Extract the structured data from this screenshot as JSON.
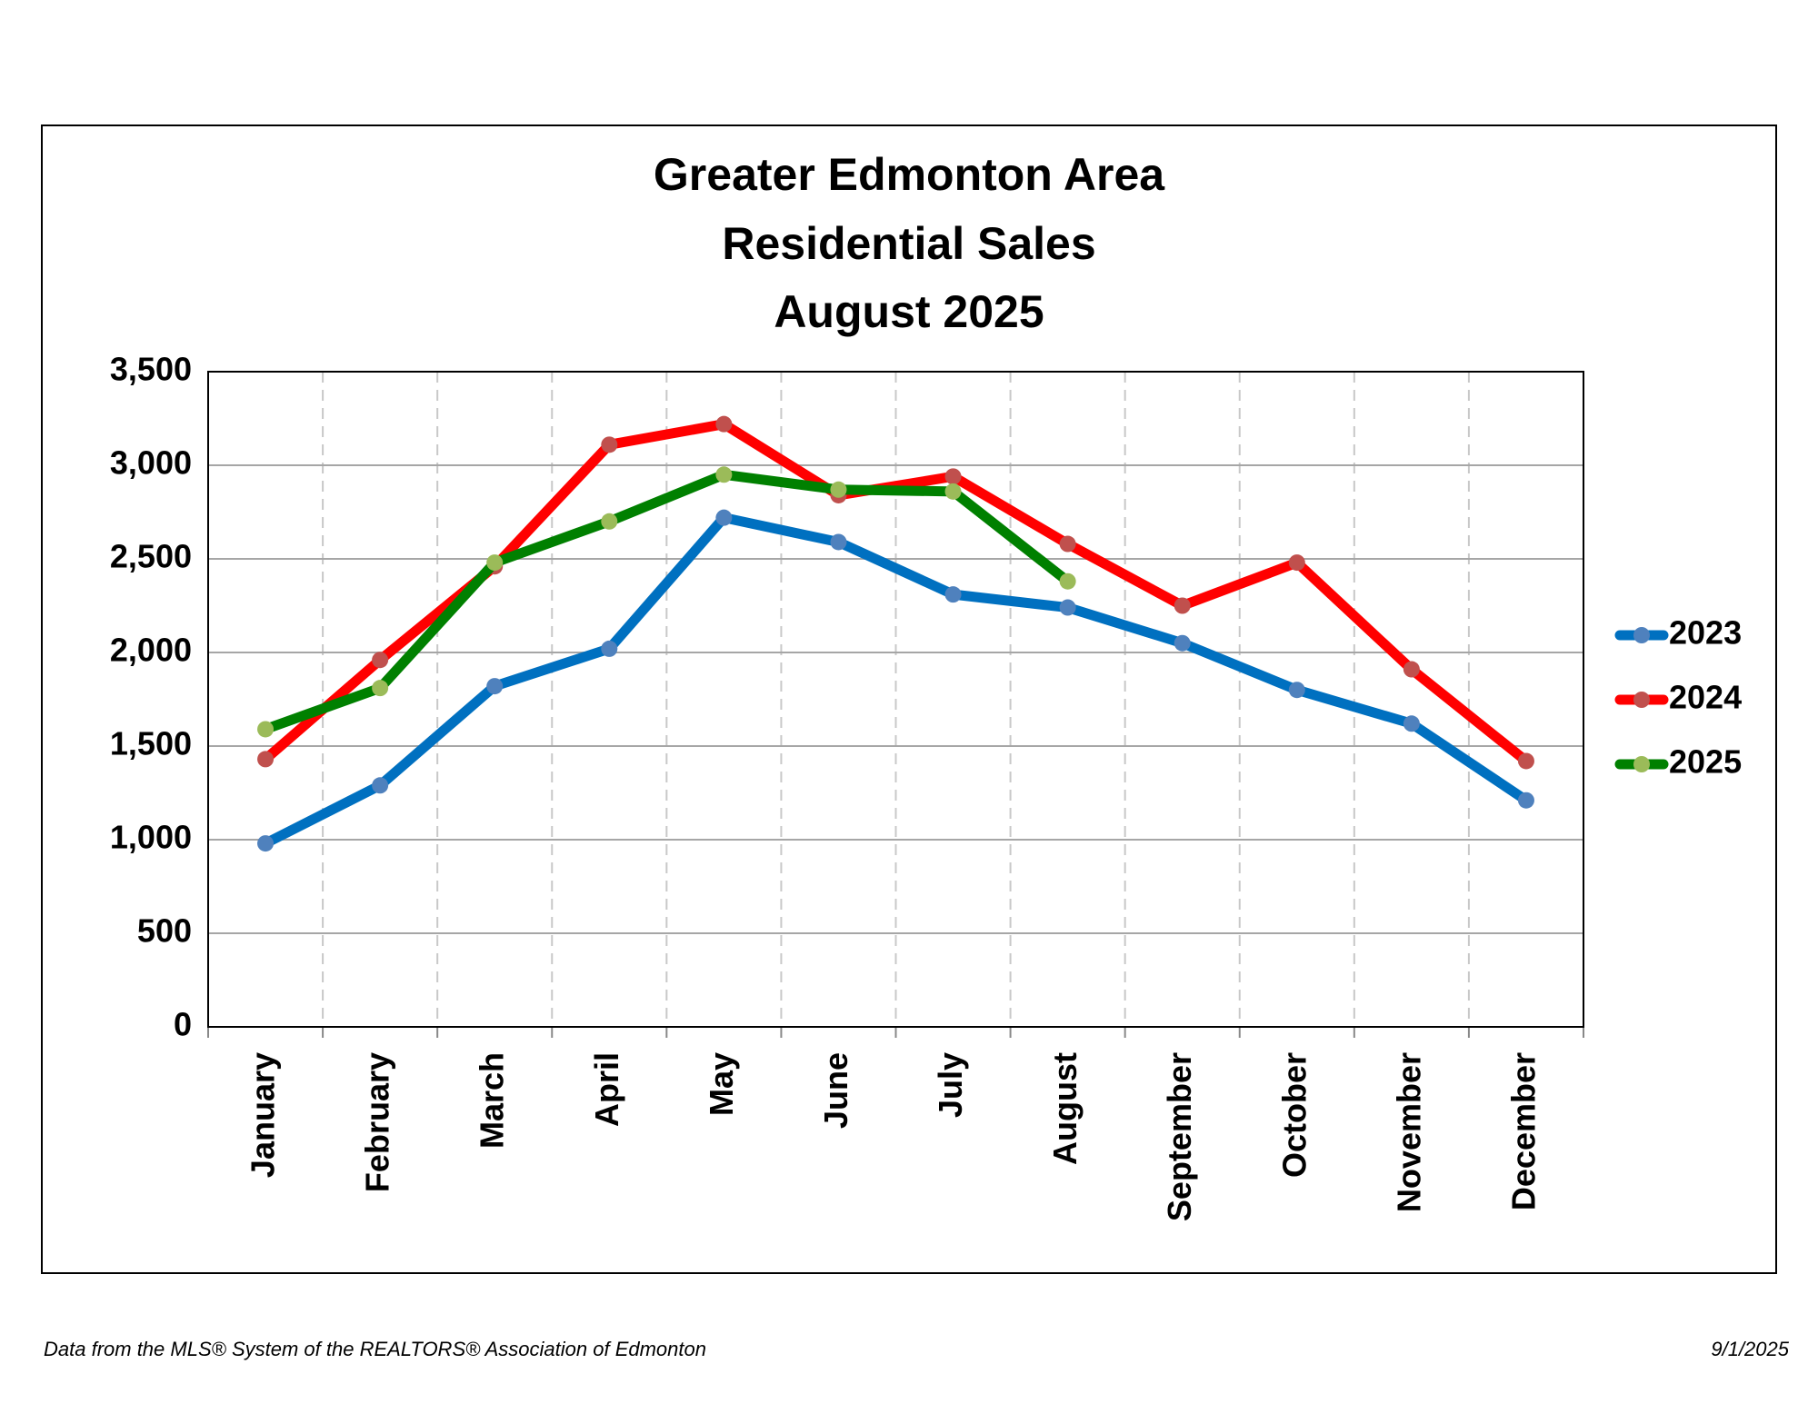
{
  "chart_data": {
    "type": "line",
    "title": [
      "Greater Edmonton Area",
      "Residential Sales",
      "August 2025"
    ],
    "categories": [
      "January",
      "February",
      "March",
      "April",
      "May",
      "June",
      "July",
      "August",
      "September",
      "October",
      "November",
      "December"
    ],
    "series": [
      {
        "name": "2023",
        "color": "#0070c0",
        "marker_color": "#4f81bd",
        "values": [
          980,
          1290,
          1820,
          2020,
          2720,
          2590,
          2310,
          2240,
          2050,
          1800,
          1620,
          1210
        ]
      },
      {
        "name": "2024",
        "color": "#ff0000",
        "marker_color": "#c0504d",
        "values": [
          1430,
          1960,
          2460,
          3110,
          3220,
          2840,
          2940,
          2580,
          2250,
          2480,
          1910,
          1420
        ]
      },
      {
        "name": "2025",
        "color": "#008000",
        "marker_color": "#9bbb59",
        "values": [
          1590,
          1810,
          2480,
          2700,
          2950,
          2870,
          2860,
          2380,
          null,
          null,
          null,
          null
        ]
      }
    ],
    "ylim": [
      0,
      3500
    ],
    "yticks": [
      0,
      500,
      {
        "value": 1000,
        "label": "1,000"
      },
      {
        "value": 1500,
        "label": "1,500"
      },
      {
        "value": 2000,
        "label": "2,000"
      },
      {
        "value": 2500,
        "label": "2,500"
      },
      {
        "value": 3000,
        "label": "3,000"
      },
      {
        "value": 3500,
        "label": "3,500"
      }
    ],
    "grid": true,
    "legend": "right"
  },
  "footer": {
    "source": "Data from the MLS® System of the REALTORS® Association of Edmonton",
    "date": "9/1/2025"
  }
}
